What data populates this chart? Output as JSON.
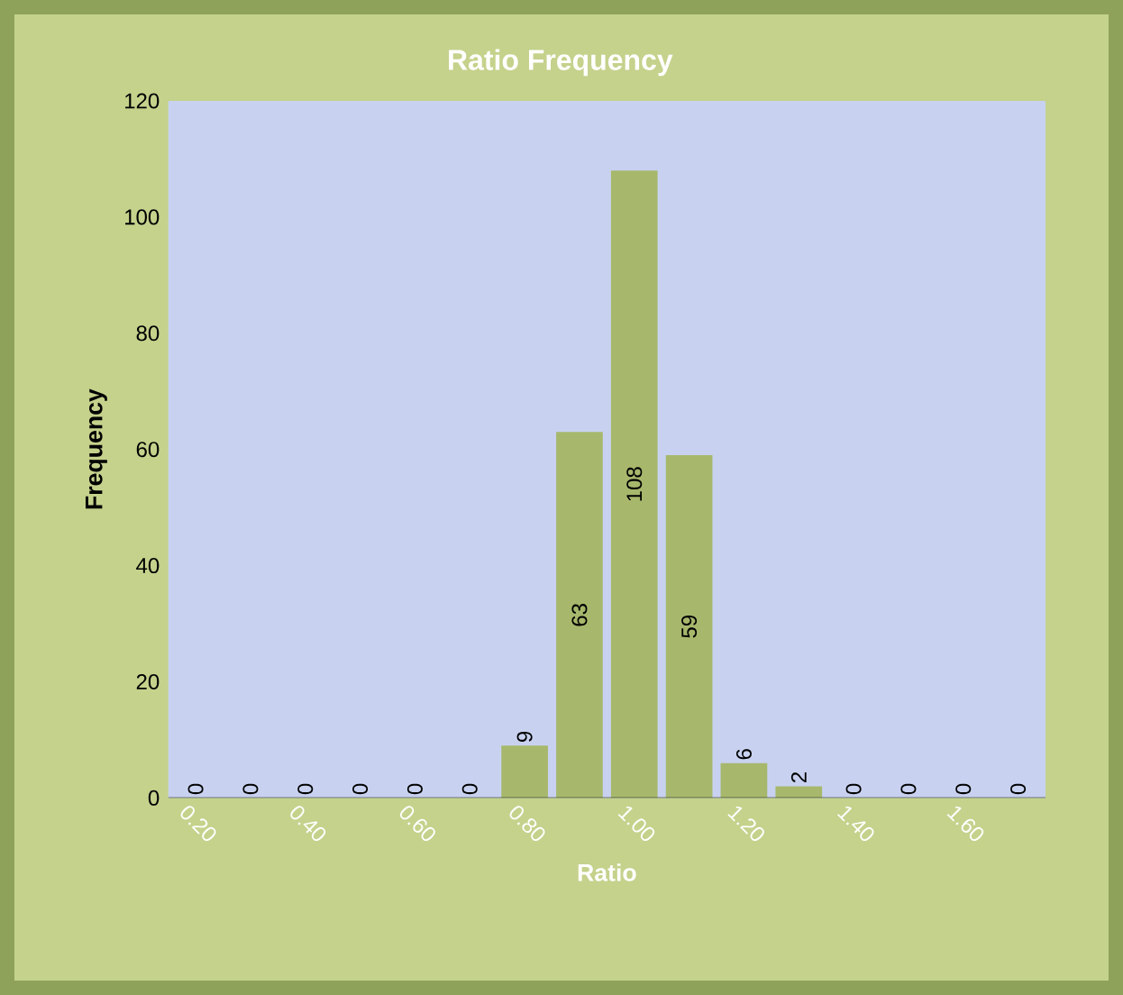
{
  "chart_data": {
    "type": "bar",
    "title": "Ratio Frequency",
    "xlabel": "Ratio",
    "ylabel": "Frequency",
    "categories": [
      "0.20",
      null,
      "0.40",
      null,
      "0.60",
      null,
      "0.80",
      null,
      "1.00",
      null,
      "1.20",
      null,
      "1.40",
      null,
      "1.60",
      null
    ],
    "values": [
      0,
      0,
      0,
      0,
      0,
      0,
      9,
      63,
      108,
      59,
      6,
      2,
      0,
      0,
      0,
      0
    ],
    "color": "#a7b86c",
    "ylim": [
      0,
      120
    ],
    "yticks": [
      0,
      20,
      40,
      60,
      80,
      100,
      120
    ],
    "data_labels": true,
    "grid": false
  }
}
